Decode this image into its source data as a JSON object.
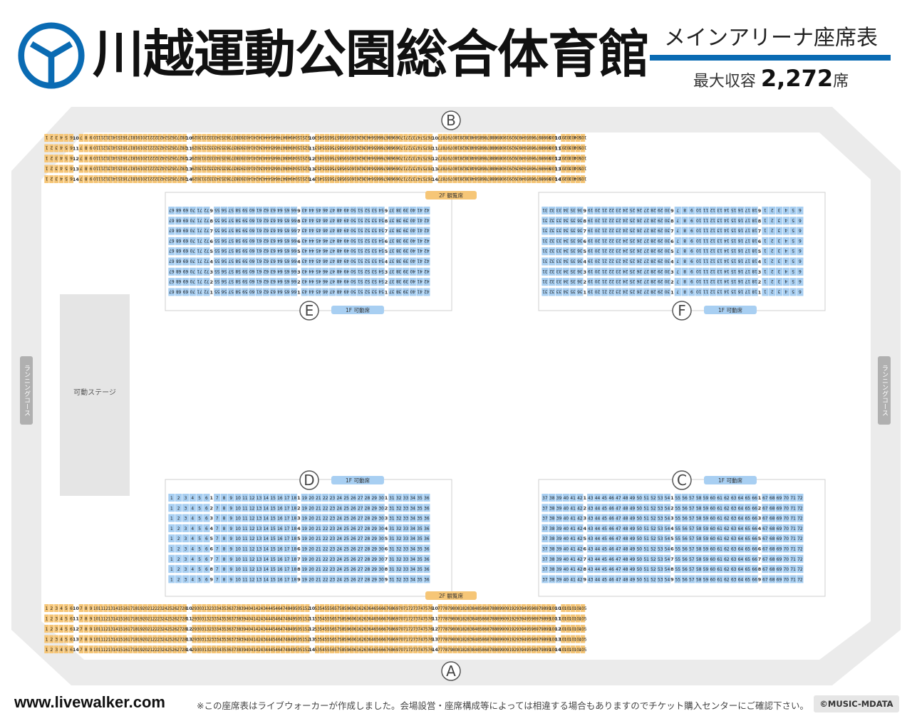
{
  "header": {
    "title": "川越運動公園総合体育館",
    "subtitle": "メインアリーナ座席表",
    "capacity_label": "最大収容",
    "capacity_value": "2,272",
    "capacity_unit": "席"
  },
  "colors": {
    "brand": "#0a6bb3",
    "fixed_seat": "#f6c677",
    "movable_seat": "#a8cff2",
    "floor_band": "#ebebeb",
    "stage": "#e5e5e5"
  },
  "labels": {
    "gallery_2f": "2F 観覧席",
    "movable_1f": "1F 可動席",
    "stage": "可動ステージ",
    "running_course": "ランニングコース"
  },
  "sections": {
    "A": "A",
    "B": "B",
    "C": "C",
    "D": "D",
    "E": "E",
    "F": "F"
  },
  "seating": {
    "A": {
      "rows": [
        "10",
        "11",
        "12",
        "13",
        "14"
      ],
      "blocks": [
        {
          "from": 1,
          "to": 6
        },
        {
          "from": 7,
          "to": 28
        },
        {
          "from": 29,
          "to": 52
        },
        {
          "from": 53,
          "to": 76
        },
        {
          "from": 77,
          "to": 100
        },
        {
          "from": 101,
          "to": 105
        }
      ]
    },
    "B": {
      "rows": [
        "10",
        "11",
        "12",
        "13",
        "14"
      ],
      "blocks": [
        {
          "from": 1,
          "to": 6
        },
        {
          "from": 7,
          "to": 28
        },
        {
          "from": 29,
          "to": 52
        },
        {
          "from": 53,
          "to": 76
        },
        {
          "from": 77,
          "to": 100
        },
        {
          "from": 101,
          "to": 105
        }
      ]
    },
    "D": {
      "rows": [
        "1",
        "2",
        "3",
        "4",
        "5",
        "6",
        "7",
        "8",
        "9"
      ],
      "blocks": [
        {
          "from": 1,
          "to": 6
        },
        {
          "from": 7,
          "to": 18
        },
        {
          "from": 19,
          "to": 30
        },
        {
          "from": 31,
          "to": 36
        }
      ]
    },
    "C": {
      "rows": [
        "1",
        "2",
        "3",
        "4",
        "5",
        "6",
        "7",
        "8",
        "9"
      ],
      "blocks": [
        {
          "from": 37,
          "to": 42
        },
        {
          "from": 43,
          "to": 54
        },
        {
          "from": 55,
          "to": 66
        },
        {
          "from": 67,
          "to": 72
        }
      ]
    },
    "E": {
      "rows": [
        "9",
        "8",
        "7",
        "6",
        "5",
        "4",
        "3",
        "2",
        "1"
      ],
      "blocks": [
        {
          "from": 67,
          "to": 72
        },
        {
          "from": 55,
          "to": 66
        },
        {
          "from": 43,
          "to": 54
        },
        {
          "from": 37,
          "to": 42
        }
      ]
    },
    "F": {
      "rows": [
        "9",
        "8",
        "7",
        "6",
        "5",
        "4",
        "3",
        "2",
        "1"
      ],
      "blocks": [
        {
          "from": 31,
          "to": 36
        },
        {
          "from": 19,
          "to": 30
        },
        {
          "from": 7,
          "to": 18
        },
        {
          "from": 1,
          "to": 6
        }
      ]
    }
  },
  "footer": {
    "site": "www.livewalker.com",
    "note": "※この座席表はライブウォーカーが作成しました。会場設営・座席構成等によっては相違する場合もありますのでチケット購入センターにご確認下さい。",
    "copyright": "©MUSIC-MDATA"
  }
}
